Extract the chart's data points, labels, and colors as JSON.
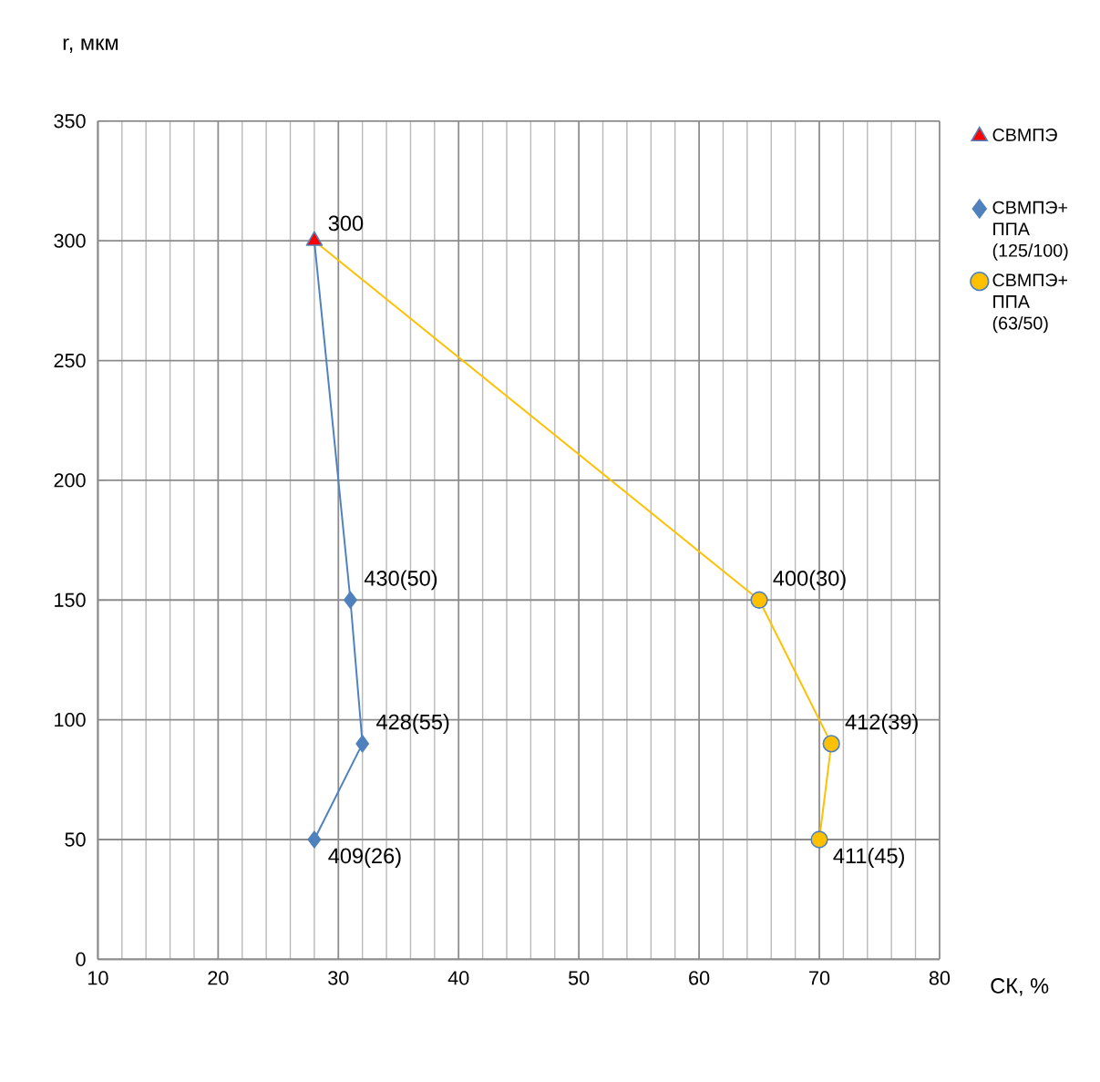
{
  "chart_data": {
    "type": "line",
    "xlabel": "СК, %",
    "ylabel": "r, мкм",
    "xlim": [
      10,
      80
    ],
    "ylim": [
      0,
      350
    ],
    "xticks": [
      10,
      20,
      30,
      40,
      50,
      60,
      70,
      80
    ],
    "yticks": [
      0,
      50,
      100,
      150,
      200,
      250,
      300,
      350
    ],
    "grid": true,
    "legend": "right",
    "series": [
      {
        "name": "СВМПЭ",
        "type": "scatter",
        "marker": "triangle",
        "color": "#ff0000",
        "x": [
          28
        ],
        "values": [
          300
        ],
        "value_labels": [
          "300"
        ]
      },
      {
        "name": "СВМПЭ+ ППА (125/100)",
        "marker": "diamond",
        "color": "#4f81bd",
        "x": [
          28,
          31,
          32,
          28
        ],
        "values": [
          300,
          150,
          90,
          50
        ]
      },
      {
        "name": "СВМПЭ+ ППА (63/50)",
        "marker": "circle",
        "color": "#ffc000",
        "x": [
          28,
          65,
          71,
          70
        ],
        "values": [
          300,
          150,
          90,
          50
        ]
      }
    ],
    "annotations": [
      {
        "text": "430(50)",
        "x": 31,
        "y": 150
      },
      {
        "text": "428(55)",
        "x": 32,
        "y": 90
      },
      {
        "text": "409(26)",
        "x": 28,
        "y": 50
      },
      {
        "text": "400(30)",
        "x": 65,
        "y": 150
      },
      {
        "text": "412(39)",
        "x": 71,
        "y": 90
      },
      {
        "text": "411(45)",
        "x": 70,
        "y": 50
      }
    ]
  }
}
